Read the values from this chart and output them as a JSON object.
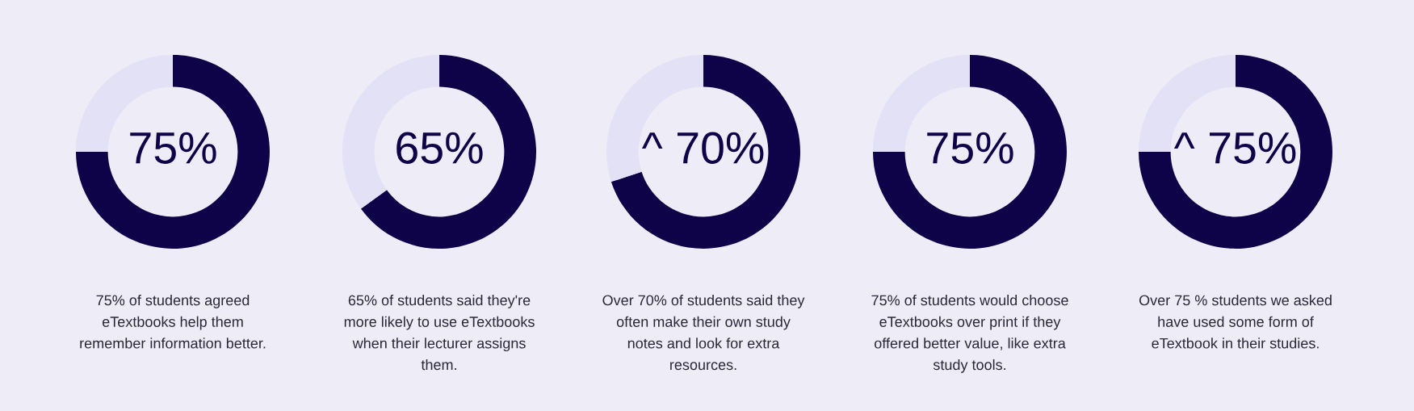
{
  "chart_data": [
    {
      "type": "donut",
      "categories": [
        null,
        null
      ],
      "values": [
        75,
        25
      ],
      "colors": [
        "#0e0249",
        "#e3e1f6"
      ],
      "value_labels": [
        "75%",
        null
      ],
      "annotations": [
        "75% of students agreed\neTextbooks help them\nremember information better."
      ]
    },
    {
      "type": "donut",
      "categories": [
        null,
        null
      ],
      "values": [
        65,
        35
      ],
      "colors": [
        "#0e0249",
        "#e3e1f6"
      ],
      "value_labels": [
        "65%",
        null
      ],
      "annotations": [
        "65% of students said they're\nmore likely to use eTextbooks\nwhen their lecturer assigns\nthem."
      ]
    },
    {
      "type": "donut",
      "categories": [
        null,
        null
      ],
      "values": [
        70,
        30
      ],
      "colors": [
        "#0e0249",
        "#e3e1f6"
      ],
      "value_labels": [
        "^ 70%",
        null
      ],
      "annotations": [
        "Over 70% of students said they\noften make their own study\nnotes and look for extra\nresources."
      ]
    },
    {
      "type": "donut",
      "categories": [
        null,
        null
      ],
      "values": [
        75,
        25
      ],
      "colors": [
        "#0e0249",
        "#e3e1f6"
      ],
      "value_labels": [
        "75%",
        null
      ],
      "annotations": [
        "75% of students would choose\neTextbooks over print if they\noffered better value, like extra\nstudy tools."
      ]
    },
    {
      "type": "donut",
      "categories": [
        null,
        null
      ],
      "values": [
        75,
        25
      ],
      "colors": [
        "#0e0249",
        "#e3e1f6"
      ],
      "value_labels": [
        "^ 75%",
        null
      ],
      "annotations": [
        "Over 75 % students we asked\nhave used some form of\neTextbook in their studies."
      ]
    }
  ]
}
